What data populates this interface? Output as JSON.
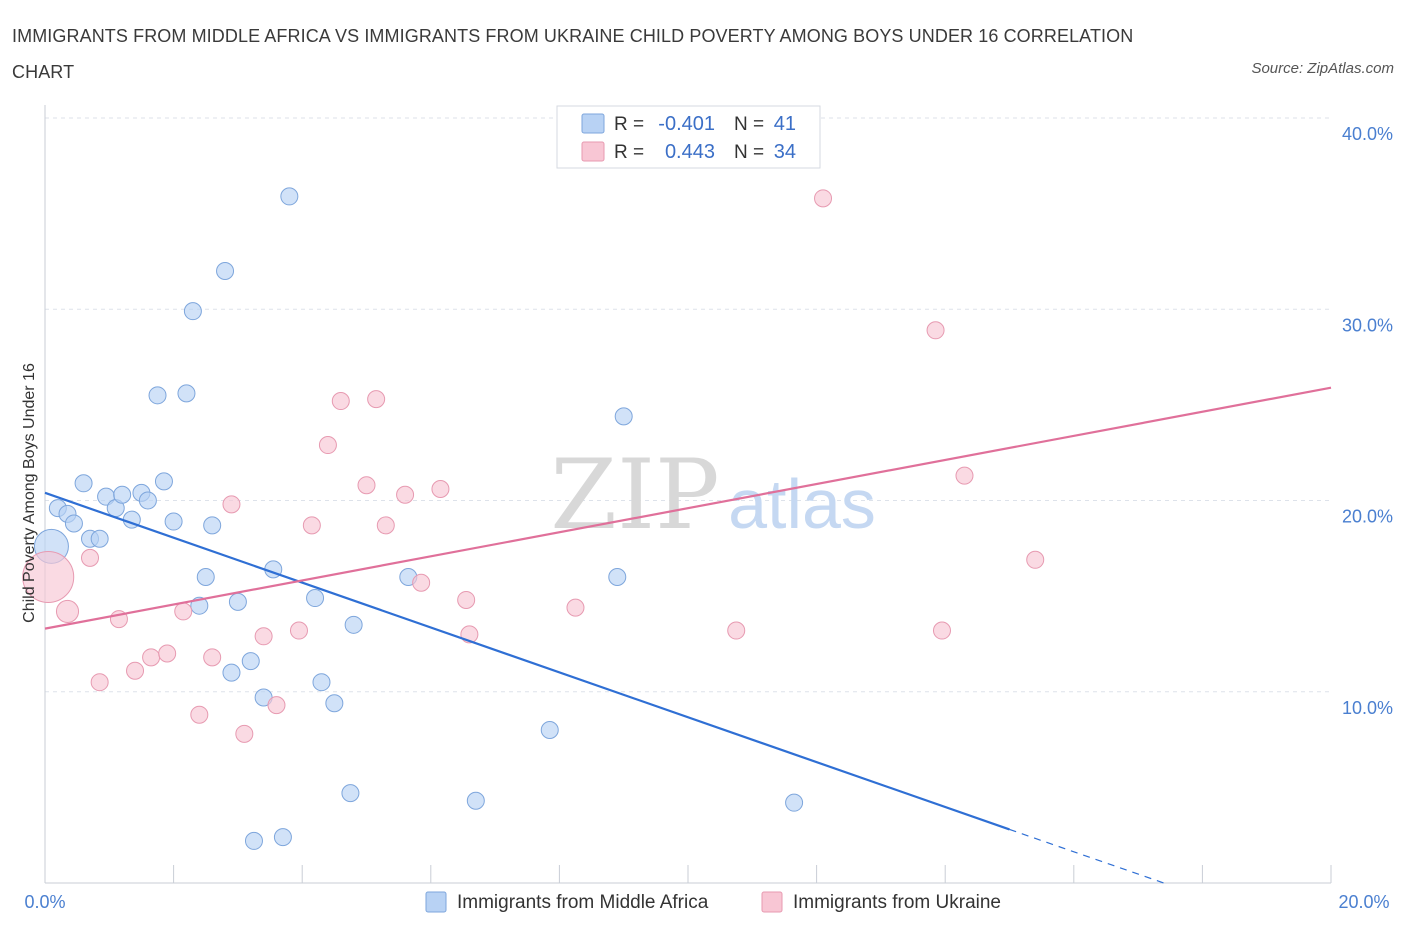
{
  "title": "IMMIGRANTS FROM MIDDLE AFRICA VS IMMIGRANTS FROM UKRAINE CHILD POVERTY AMONG BOYS UNDER 16 CORRELATION CHART",
  "source": "Source: ZipAtlas.com",
  "watermark": {
    "zip": "ZIP",
    "atlas": "atlas"
  },
  "colors": {
    "blue_fill": "#b8d2f4",
    "blue_stroke": "#7ea6dc",
    "blue_line": "#2f6fd4",
    "pink_fill": "#f8c6d4",
    "pink_stroke": "#e79ab1",
    "pink_line": "#e0709a",
    "grid": "#dde2ea",
    "tick_text": "#4a7fd0"
  },
  "legend": {
    "rows": [
      {
        "r_label": "R =",
        "r_value": "-0.401",
        "n_label": "N =",
        "n_value": "41",
        "series": "blue"
      },
      {
        "r_label": "R =",
        "r_value": "0.443",
        "n_label": "N =",
        "n_value": "34",
        "series": "pink"
      }
    ]
  },
  "bottom_legend": [
    "Immigrants from Middle Africa",
    "Immigrants from Ukraine"
  ],
  "chart_data": {
    "type": "scatter",
    "title": "IMMIGRANTS FROM MIDDLE AFRICA VS IMMIGRANTS FROM UKRAINE CHILD POVERTY AMONG BOYS UNDER 16 CORRELATION CHART",
    "xlabel": "",
    "ylabel": "Child Poverty Among Boys Under 16",
    "xlim": [
      0,
      20
    ],
    "ylim": [
      0,
      40
    ],
    "x_tick_labels": [
      "0.0%",
      "20.0%"
    ],
    "y_ticks": [
      10,
      20,
      30,
      40
    ],
    "y_tick_labels": [
      "10.0%",
      "20.0%",
      "30.0%",
      "40.0%"
    ],
    "grid": true,
    "series": [
      {
        "name": "Immigrants from Middle Africa",
        "color": "blue",
        "points": [
          {
            "x": 0.1,
            "y": 17.6,
            "s": 2
          },
          {
            "x": 0.2,
            "y": 19.6,
            "s": 1
          },
          {
            "x": 0.35,
            "y": 19.3,
            "s": 1
          },
          {
            "x": 0.45,
            "y": 18.8,
            "s": 1
          },
          {
            "x": 0.6,
            "y": 20.9,
            "s": 1
          },
          {
            "x": 0.7,
            "y": 18.0,
            "s": 1
          },
          {
            "x": 0.85,
            "y": 18.0,
            "s": 1
          },
          {
            "x": 0.95,
            "y": 20.2,
            "s": 1
          },
          {
            "x": 1.1,
            "y": 19.6,
            "s": 1
          },
          {
            "x": 1.2,
            "y": 20.3,
            "s": 1
          },
          {
            "x": 1.35,
            "y": 19.0,
            "s": 1
          },
          {
            "x": 1.5,
            "y": 20.4,
            "s": 1
          },
          {
            "x": 1.6,
            "y": 20.0,
            "s": 1
          },
          {
            "x": 1.75,
            "y": 25.5,
            "s": 1
          },
          {
            "x": 1.85,
            "y": 21.0,
            "s": 1
          },
          {
            "x": 2.0,
            "y": 18.9,
            "s": 1
          },
          {
            "x": 2.2,
            "y": 25.6,
            "s": 1
          },
          {
            "x": 2.3,
            "y": 29.9,
            "s": 1
          },
          {
            "x": 2.4,
            "y": 14.5,
            "s": 1
          },
          {
            "x": 2.5,
            "y": 16.0,
            "s": 1
          },
          {
            "x": 2.6,
            "y": 18.7,
            "s": 1
          },
          {
            "x": 2.8,
            "y": 32.0,
            "s": 1
          },
          {
            "x": 2.9,
            "y": 11.0,
            "s": 1
          },
          {
            "x": 3.0,
            "y": 14.7,
            "s": 1
          },
          {
            "x": 3.2,
            "y": 11.6,
            "s": 1
          },
          {
            "x": 3.25,
            "y": 2.2,
            "s": 1
          },
          {
            "x": 3.4,
            "y": 9.7,
            "s": 1
          },
          {
            "x": 3.55,
            "y": 16.4,
            "s": 1
          },
          {
            "x": 3.7,
            "y": 2.4,
            "s": 1
          },
          {
            "x": 3.8,
            "y": 35.9,
            "s": 1
          },
          {
            "x": 4.2,
            "y": 14.9,
            "s": 1
          },
          {
            "x": 4.3,
            "y": 10.5,
            "s": 1
          },
          {
            "x": 4.5,
            "y": 9.4,
            "s": 1
          },
          {
            "x": 4.75,
            "y": 4.7,
            "s": 1
          },
          {
            "x": 4.8,
            "y": 13.5,
            "s": 1
          },
          {
            "x": 5.65,
            "y": 16.0,
            "s": 1
          },
          {
            "x": 6.7,
            "y": 4.3,
            "s": 1
          },
          {
            "x": 7.85,
            "y": 8.0,
            "s": 1
          },
          {
            "x": 8.9,
            "y": 16.0,
            "s": 1
          },
          {
            "x": 9.0,
            "y": 24.4,
            "s": 1
          },
          {
            "x": 11.65,
            "y": 4.2,
            "s": 1
          }
        ]
      },
      {
        "name": "Immigrants from Ukraine",
        "color": "pink",
        "points": [
          {
            "x": 0.05,
            "y": 16.0,
            "s": 3
          },
          {
            "x": 0.35,
            "y": 14.2,
            "s": 1.3
          },
          {
            "x": 0.7,
            "y": 17.0,
            "s": 1
          },
          {
            "x": 0.85,
            "y": 10.5,
            "s": 1
          },
          {
            "x": 1.15,
            "y": 13.8,
            "s": 1
          },
          {
            "x": 1.4,
            "y": 11.1,
            "s": 1
          },
          {
            "x": 1.65,
            "y": 11.8,
            "s": 1
          },
          {
            "x": 1.9,
            "y": 12.0,
            "s": 1
          },
          {
            "x": 2.15,
            "y": 14.2,
            "s": 1
          },
          {
            "x": 2.4,
            "y": 8.8,
            "s": 1
          },
          {
            "x": 2.6,
            "y": 11.8,
            "s": 1
          },
          {
            "x": 2.9,
            "y": 19.8,
            "s": 1
          },
          {
            "x": 3.1,
            "y": 7.8,
            "s": 1
          },
          {
            "x": 3.4,
            "y": 12.9,
            "s": 1
          },
          {
            "x": 3.6,
            "y": 9.3,
            "s": 1
          },
          {
            "x": 3.95,
            "y": 13.2,
            "s": 1
          },
          {
            "x": 4.15,
            "y": 18.7,
            "s": 1
          },
          {
            "x": 4.4,
            "y": 22.9,
            "s": 1
          },
          {
            "x": 4.6,
            "y": 25.2,
            "s": 1
          },
          {
            "x": 5.0,
            "y": 20.8,
            "s": 1
          },
          {
            "x": 5.15,
            "y": 25.3,
            "s": 1
          },
          {
            "x": 5.3,
            "y": 18.7,
            "s": 1
          },
          {
            "x": 5.6,
            "y": 20.3,
            "s": 1
          },
          {
            "x": 5.85,
            "y": 15.7,
            "s": 1
          },
          {
            "x": 6.15,
            "y": 20.6,
            "s": 1
          },
          {
            "x": 6.55,
            "y": 14.8,
            "s": 1
          },
          {
            "x": 6.6,
            "y": 13.0,
            "s": 1
          },
          {
            "x": 8.25,
            "y": 14.4,
            "s": 1
          },
          {
            "x": 10.75,
            "y": 13.2,
            "s": 1
          },
          {
            "x": 12.1,
            "y": 35.8,
            "s": 1
          },
          {
            "x": 13.85,
            "y": 28.9,
            "s": 1
          },
          {
            "x": 13.95,
            "y": 13.2,
            "s": 1
          },
          {
            "x": 14.3,
            "y": 21.3,
            "s": 1
          },
          {
            "x": 15.4,
            "y": 16.9,
            "s": 1
          }
        ]
      }
    ],
    "trend_lines": [
      {
        "series": "Immigrants from Middle Africa",
        "x0": 0,
        "y0": 20.4,
        "x1": 15.0,
        "y1": 2.8,
        "dashed_to_x": 17.4,
        "dashed_to_y": 0
      },
      {
        "series": "Immigrants from Ukraine",
        "x0": 0,
        "y0": 13.3,
        "x1": 20.0,
        "y1": 25.9
      }
    ]
  }
}
